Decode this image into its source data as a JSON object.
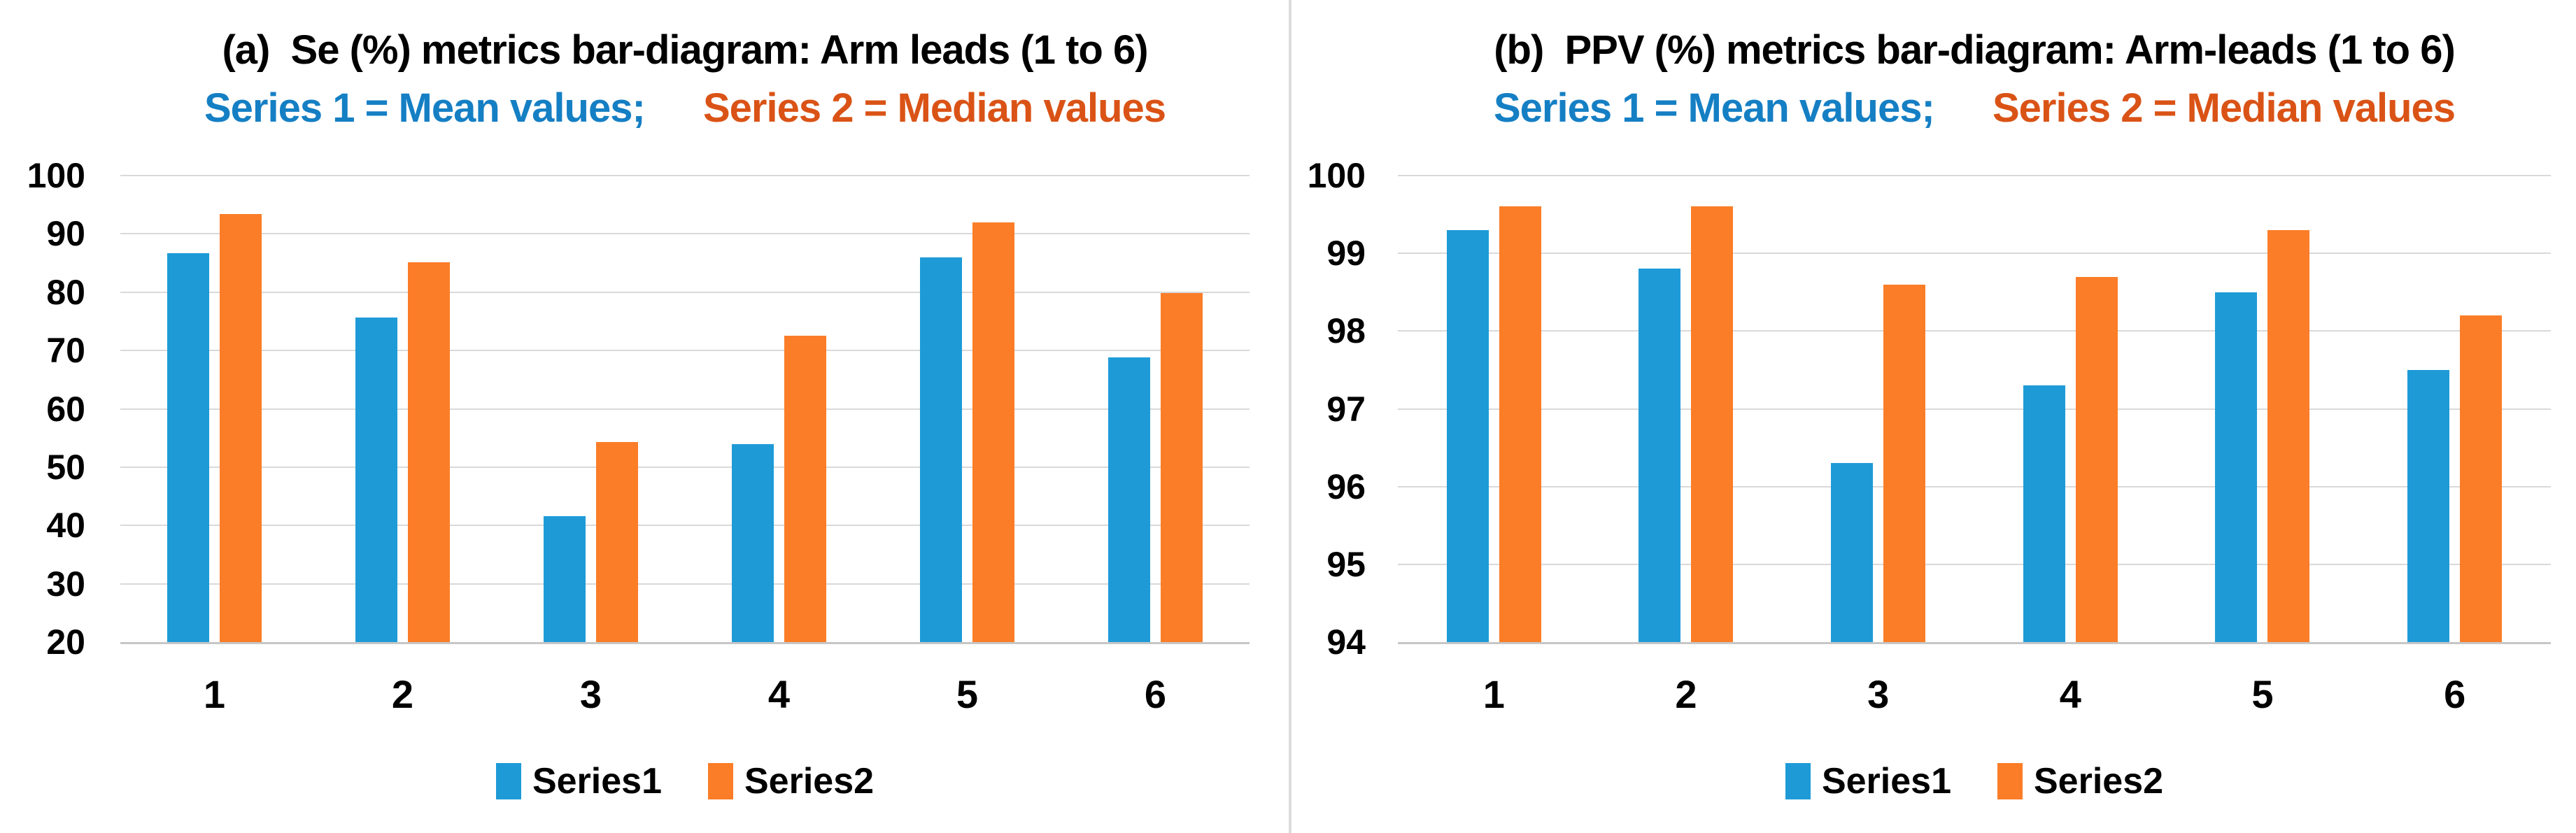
{
  "figure": {
    "background": "#ffffff",
    "divider_color": "#dcdcdc",
    "gridline_color": "#d9d9d9",
    "axis_line_color": "#c6c6c6"
  },
  "chart_data": [
    {
      "type": "bar",
      "panel_label": "a",
      "title": "(a)  Se (%) metrics bar-diagram: Arm leads (1 to 6)",
      "subtitle": {
        "series1": {
          "text": "Series 1 = Mean values;",
          "color": "#157fc4"
        },
        "series2": {
          "text": "Series 2 = Median values",
          "color": "#da5316"
        }
      },
      "categories": [
        "1",
        "2",
        "3",
        "4",
        "5",
        "6"
      ],
      "series": [
        {
          "name": "Series1",
          "color": "#1e9bd7",
          "values": [
            86.7,
            75.7,
            41.6,
            54.0,
            86.0,
            68.8
          ]
        },
        {
          "name": "Series2",
          "color": "#fb7d28",
          "values": [
            93.4,
            85.1,
            54.3,
            72.5,
            92.0,
            79.8
          ]
        }
      ],
      "ylim": [
        20,
        100
      ],
      "yticks": [
        100,
        90,
        80,
        70,
        60,
        50,
        40,
        30,
        20
      ],
      "xlabel": "",
      "ylabel": "",
      "grid": true,
      "legend_position": "bottom"
    },
    {
      "type": "bar",
      "panel_label": "b",
      "title": "(b)  PPV (%) metrics bar-diagram: Arm-leads (1 to 6)",
      "subtitle": {
        "series1": {
          "text": "Series 1 = Mean values;",
          "color": "#157fc4"
        },
        "series2": {
          "text": "Series 2 = Median values",
          "color": "#da5316"
        }
      },
      "categories": [
        "1",
        "2",
        "3",
        "4",
        "5",
        "6"
      ],
      "series": [
        {
          "name": "Series1",
          "color": "#1e9bd7",
          "values": [
            99.3,
            98.8,
            96.3,
            97.3,
            98.5,
            97.5
          ]
        },
        {
          "name": "Series2",
          "color": "#fb7d28",
          "values": [
            99.6,
            99.6,
            98.6,
            98.7,
            99.3,
            98.2
          ]
        }
      ],
      "ylim": [
        94,
        100
      ],
      "yticks": [
        100,
        99,
        98,
        97,
        96,
        95,
        94
      ],
      "xlabel": "",
      "ylabel": "",
      "grid": true,
      "legend_position": "bottom"
    }
  ]
}
